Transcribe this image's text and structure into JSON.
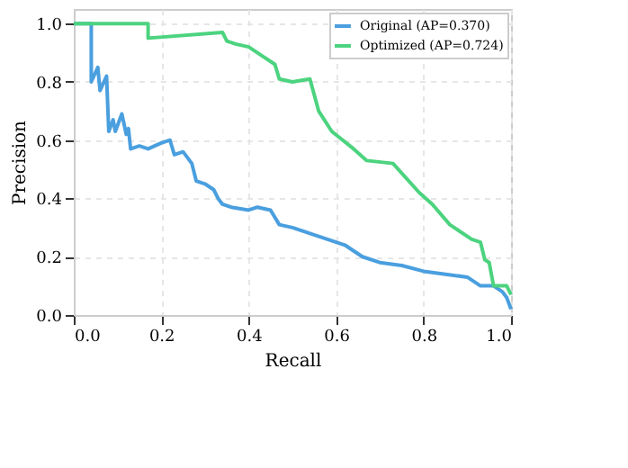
{
  "chart_data": {
    "type": "line",
    "xlabel": "Recall",
    "ylabel": "Precision",
    "xlim": [
      0,
      1
    ],
    "ylim": [
      0,
      1.05
    ],
    "xticks": [
      {
        "value": 0,
        "label": "0.0"
      },
      0.2,
      0.4,
      0.6,
      0.8,
      {
        "value": 1,
        "label": "1.0"
      }
    ],
    "yticks": [
      {
        "value": 0,
        "label": "0.0"
      },
      0.2,
      0.4,
      0.6,
      0.8,
      {
        "value": 1,
        "label": "1.0"
      }
    ],
    "grid": true,
    "legend": "top right",
    "line_style": "solid",
    "marker": "none",
    "series": [
      {
        "name": "Original (AP=0.370)",
        "color": "#4a9fdf",
        "x": [
          0,
          0.04,
          0.04,
          0.055,
          0.06,
          0.075,
          0.08,
          0.09,
          0.095,
          0.11,
          0.12,
          0.125,
          0.13,
          0.15,
          0.17,
          0.2,
          0.22,
          0.23,
          0.25,
          0.26,
          0.27,
          0.28,
          0.3,
          0.32,
          0.33,
          0.34,
          0.36,
          0.4,
          0.42,
          0.45,
          0.47,
          0.5,
          0.54,
          0.58,
          0.62,
          0.66,
          0.7,
          0.75,
          0.8,
          0.85,
          0.9,
          0.93,
          0.96,
          0.98,
          0.99,
          1.0
        ],
        "values": [
          1,
          1,
          0.8,
          0.85,
          0.77,
          0.82,
          0.63,
          0.67,
          0.63,
          0.69,
          0.62,
          0.64,
          0.57,
          0.58,
          0.57,
          0.59,
          0.6,
          0.55,
          0.56,
          0.54,
          0.52,
          0.46,
          0.45,
          0.43,
          0.4,
          0.38,
          0.37,
          0.36,
          0.37,
          0.36,
          0.31,
          0.3,
          0.28,
          0.26,
          0.24,
          0.2,
          0.18,
          0.17,
          0.15,
          0.14,
          0.13,
          0.1,
          0.1,
          0.08,
          0.06,
          0.02
        ]
      },
      {
        "name": "Optimized (AP=0.724)",
        "color": "#4cd37f",
        "x": [
          0,
          0.17,
          0.17,
          0.34,
          0.35,
          0.37,
          0.4,
          0.43,
          0.46,
          0.47,
          0.5,
          0.54,
          0.56,
          0.59,
          0.64,
          0.67,
          0.73,
          0.79,
          0.82,
          0.86,
          0.91,
          0.93,
          0.94,
          0.95,
          0.96,
          0.99,
          1.0
        ],
        "values": [
          1,
          1,
          0.95,
          0.97,
          0.94,
          0.93,
          0.92,
          0.89,
          0.86,
          0.81,
          0.8,
          0.81,
          0.7,
          0.63,
          0.57,
          0.53,
          0.52,
          0.42,
          0.38,
          0.31,
          0.26,
          0.25,
          0.19,
          0.18,
          0.1,
          0.1,
          0.07
        ]
      }
    ]
  }
}
